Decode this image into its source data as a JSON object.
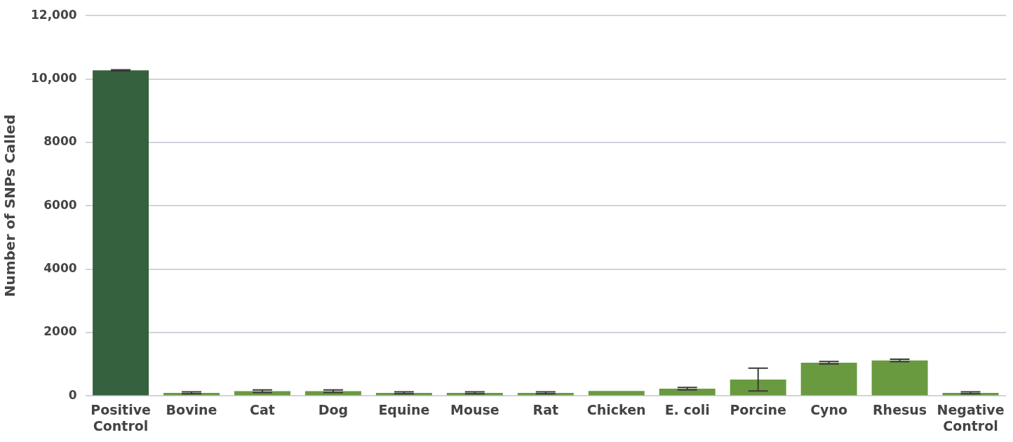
{
  "chart_data": {
    "type": "bar",
    "ylabel": "Number of SNPs Called",
    "categories": [
      "Positive Control",
      "Bovine",
      "Cat",
      "Dog",
      "Equine",
      "Mouse",
      "Rat",
      "Chicken",
      "E. coli",
      "Porcine",
      "Cyno",
      "Rhesus",
      "Negative Control"
    ],
    "values": [
      10270,
      100,
      150,
      150,
      100,
      100,
      100,
      160,
      230,
      520,
      1050,
      1120,
      100
    ],
    "errors": [
      20,
      30,
      40,
      40,
      30,
      30,
      30,
      null,
      40,
      360,
      40,
      40,
      30
    ],
    "colors": [
      "#36613e",
      "#6a9a3f",
      "#6a9a3f",
      "#6a9a3f",
      "#6a9a3f",
      "#6a9a3f",
      "#6a9a3f",
      "#6a9a3f",
      "#6a9a3f",
      "#6a9a3f",
      "#6a9a3f",
      "#6a9a3f",
      "#6a9a3f"
    ],
    "ylim": [
      0,
      12000
    ],
    "yticks": [
      0,
      2000,
      4000,
      6000,
      8000,
      {
        "value": 10000,
        "label": "10,000"
      },
      {
        "value": 12000,
        "label": "12,000"
      }
    ],
    "grid": "y",
    "legend": false
  }
}
